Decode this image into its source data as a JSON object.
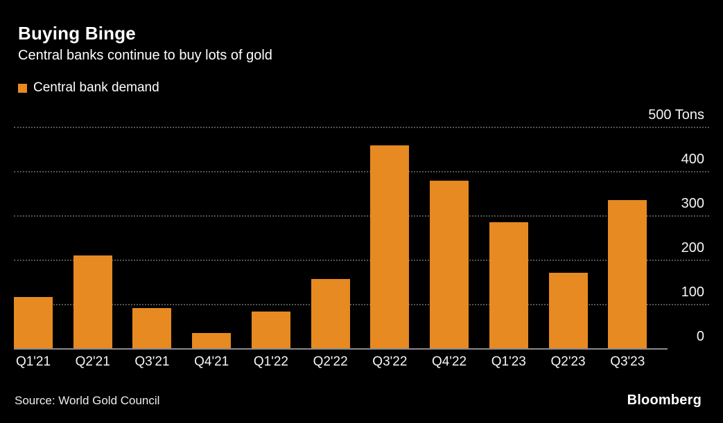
{
  "chart_data": {
    "type": "bar",
    "title": "Buying Binge",
    "subtitle": "Central banks continue to buy lots of gold",
    "legend": [
      "Central bank demand"
    ],
    "legend_position": "top-left",
    "categories": [
      "Q1'21",
      "Q2'21",
      "Q3'21",
      "Q4'21",
      "Q1'22",
      "Q2'22",
      "Q3'22",
      "Q4'22",
      "Q1'23",
      "Q2'23",
      "Q3'23"
    ],
    "values": [
      115,
      209,
      91,
      35,
      83,
      157,
      458,
      378,
      284,
      170,
      335
    ],
    "xlabel": "",
    "ylabel": "Tons",
    "ylim": [
      0,
      500
    ],
    "yticks": [
      0,
      100,
      200,
      300,
      400,
      500
    ],
    "ytick_labels": [
      "0",
      "100",
      "200",
      "300",
      "400",
      "500 Tons"
    ],
    "yaxis_side": "right",
    "grid": "horizontal-dotted",
    "bar_color": "#E68A21",
    "background_color": "#000000",
    "text_color": "#FFFFFF",
    "gridline_color": "#565656"
  },
  "footer": {
    "source": "Source: World Gold Council",
    "brand": "Bloomberg"
  }
}
